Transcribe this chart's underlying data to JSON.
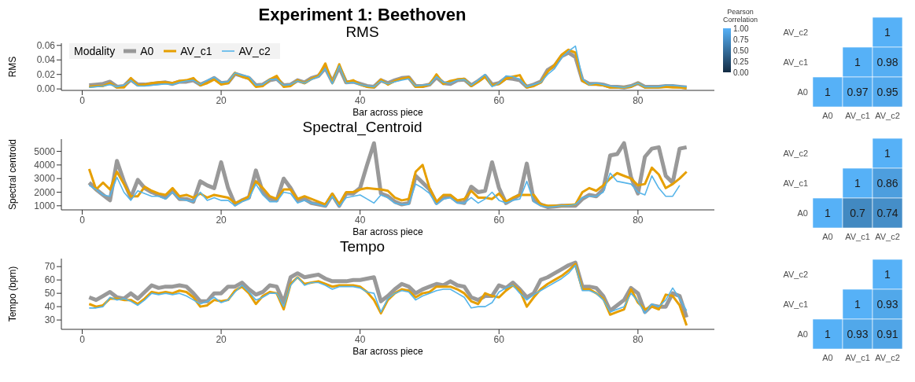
{
  "chart_data": [
    {
      "type": "line",
      "title": "Experiment 1: Beethoven",
      "subtitle": "RMS",
      "xlabel": "Bar across piece",
      "ylabel": "RMS",
      "legend_title": "Modality",
      "legend": "top left",
      "x": [
        1,
        2,
        3,
        4,
        5,
        6,
        7,
        8,
        9,
        10,
        11,
        12,
        13,
        14,
        15,
        16,
        17,
        18,
        19,
        20,
        21,
        22,
        23,
        24,
        25,
        26,
        27,
        28,
        29,
        30,
        31,
        32,
        33,
        34,
        35,
        36,
        37,
        38,
        39,
        40,
        41,
        42,
        43,
        44,
        45,
        46,
        47,
        48,
        49,
        50,
        51,
        52,
        53,
        54,
        55,
        56,
        57,
        58,
        59,
        60,
        61,
        62,
        63,
        64,
        65,
        66,
        67,
        68,
        69,
        70,
        71,
        72,
        73,
        74,
        75,
        76,
        77,
        78,
        79,
        80,
        81,
        82,
        83,
        84,
        85,
        86,
        87
      ],
      "xlim": [
        -3,
        91
      ],
      "xticks": [
        0,
        20,
        40,
        60,
        80
      ],
      "ylim": [
        -0.002,
        0.063
      ],
      "yticks": [
        {
          "value": 0,
          "label": "0.00"
        },
        {
          "value": 0.02,
          "label": "0.02"
        },
        {
          "value": 0.04,
          "label": "0.04"
        },
        {
          "value": 0.06,
          "label": "0.06"
        }
      ],
      "series": [
        {
          "name": "A0",
          "color": "#999999",
          "values": [
            0.005,
            0.006,
            0.007,
            0.01,
            0.003,
            0.004,
            0.013,
            0.006,
            0.006,
            0.007,
            0.008,
            0.009,
            0.007,
            0.01,
            0.01,
            0.012,
            0.006,
            0.01,
            0.015,
            0.008,
            0.009,
            0.021,
            0.018,
            0.015,
            0.005,
            0.006,
            0.012,
            0.014,
            0.005,
            0.006,
            0.012,
            0.009,
            0.015,
            0.018,
            0.029,
            0.01,
            0.03,
            0.009,
            0.01,
            0.007,
            0.004,
            0.003,
            0.012,
            0.008,
            0.012,
            0.015,
            0.016,
            0.004,
            0.004,
            0.006,
            0.016,
            0.008,
            0.007,
            0.012,
            0.013,
            0.005,
            0.011,
            0.018,
            0.006,
            0.008,
            0.015,
            0.014,
            0.012,
            0.003,
            0.006,
            0.01,
            0.026,
            0.032,
            0.045,
            0.05,
            0.044,
            0.012,
            0.007,
            0.007,
            0.006,
            0.003,
            0.003,
            0.002,
            0.004,
            0.008,
            0.003,
            0.003,
            0.003,
            0.004,
            0.004,
            0.003,
            0.002
          ]
        },
        {
          "name": "AV_c1",
          "color": "#e69f00",
          "values": [
            0.003,
            0.004,
            0.004,
            0.008,
            0.002,
            0.002,
            0.015,
            0.005,
            0.006,
            0.008,
            0.009,
            0.009,
            0.008,
            0.011,
            0.012,
            0.015,
            0.005,
            0.008,
            0.013,
            0.006,
            0.008,
            0.022,
            0.017,
            0.014,
            0.003,
            0.004,
            0.013,
            0.018,
            0.003,
            0.004,
            0.012,
            0.008,
            0.014,
            0.018,
            0.035,
            0.008,
            0.034,
            0.009,
            0.012,
            0.006,
            0.003,
            0.002,
            0.013,
            0.006,
            0.011,
            0.014,
            0.016,
            0.003,
            0.003,
            0.006,
            0.02,
            0.007,
            0.011,
            0.013,
            0.014,
            0.004,
            0.01,
            0.017,
            0.005,
            0.007,
            0.014,
            0.017,
            0.019,
            0.002,
            0.004,
            0.009,
            0.024,
            0.033,
            0.047,
            0.054,
            0.05,
            0.011,
            0.006,
            0.006,
            0.005,
            0.002,
            0.002,
            0.002,
            0.003,
            0.008,
            0.002,
            0.002,
            0.002,
            0.003,
            0.002,
            0.002,
            0.001
          ]
        },
        {
          "name": "AV_c2",
          "color": "#56b4e9",
          "values": [
            0.002,
            0.003,
            0.004,
            0.006,
            0.003,
            0.005,
            0.012,
            0.004,
            0.004,
            0.005,
            0.006,
            0.007,
            0.006,
            0.009,
            0.011,
            0.012,
            0.006,
            0.012,
            0.016,
            0.009,
            0.01,
            0.022,
            0.019,
            0.017,
            0.005,
            0.006,
            0.013,
            0.013,
            0.005,
            0.006,
            0.011,
            0.008,
            0.013,
            0.017,
            0.028,
            0.007,
            0.032,
            0.008,
            0.009,
            0.006,
            0.004,
            0.003,
            0.011,
            0.007,
            0.01,
            0.012,
            0.014,
            0.004,
            0.005,
            0.006,
            0.017,
            0.009,
            0.008,
            0.012,
            0.013,
            0.005,
            0.012,
            0.02,
            0.003,
            0.008,
            0.018,
            0.017,
            0.013,
            0.003,
            0.006,
            0.009,
            0.02,
            0.028,
            0.043,
            0.052,
            0.059,
            0.014,
            0.006,
            0.008,
            0.006,
            0.004,
            0.003,
            0.002,
            0.004,
            0.008,
            0.003,
            0.003,
            0.003,
            0.005,
            0.005,
            0.004,
            0.003
          ]
        }
      ]
    },
    {
      "type": "heatmap",
      "clabel": "Pearson Correlation",
      "categories": [
        "A0",
        "AV_c1",
        "AV_c2"
      ],
      "y_categories": [
        "AV_c2",
        "AV_c1",
        "A0"
      ],
      "cells": [
        [
          null,
          null,
          1
        ],
        [
          null,
          1,
          0.98
        ],
        [
          1,
          0.97,
          0.95
        ]
      ],
      "data_labels": true,
      "clim": [
        0,
        1
      ],
      "cticks": [
        {
          "value": 0,
          "label": "0.00"
        },
        {
          "value": 0.25,
          "label": "0.25"
        },
        {
          "value": 0.5,
          "label": "0.50"
        },
        {
          "value": 0.75,
          "label": "0.75"
        },
        {
          "value": 1,
          "label": "1.00"
        }
      ]
    },
    {
      "type": "line",
      "title": "Spectral_Centroid",
      "xlabel": "Bar across piece",
      "ylabel": "Spectral centroid",
      "x": [
        1,
        2,
        3,
        4,
        5,
        6,
        7,
        8,
        9,
        10,
        11,
        12,
        13,
        14,
        15,
        16,
        17,
        18,
        19,
        20,
        21,
        22,
        23,
        24,
        25,
        26,
        27,
        28,
        29,
        30,
        31,
        32,
        33,
        34,
        35,
        36,
        37,
        38,
        39,
        40,
        41,
        42,
        43,
        44,
        45,
        46,
        47,
        48,
        49,
        50,
        51,
        52,
        53,
        54,
        55,
        56,
        57,
        58,
        59,
        60,
        61,
        62,
        63,
        64,
        65,
        66,
        67,
        68,
        69,
        70,
        71,
        72,
        73,
        74,
        75,
        76,
        77,
        78,
        79,
        80,
        81,
        82,
        83,
        84,
        85,
        86,
        87
      ],
      "xlim": [
        -3,
        91
      ],
      "xticks": [
        0,
        20,
        40,
        60,
        80
      ],
      "ylim": [
        700,
        5900
      ],
      "yticks": [
        1000,
        2000,
        3000,
        4000,
        5000
      ],
      "series": [
        {
          "color": "#999999",
          "values": [
            2700,
            2200,
            1800,
            1400,
            4300,
            2800,
            1600,
            2900,
            2300,
            2000,
            1800,
            1600,
            2100,
            1500,
            1500,
            1300,
            2800,
            2500,
            2300,
            4200,
            2300,
            1100,
            1400,
            1600,
            3600,
            2000,
            1500,
            1400,
            3000,
            2300,
            1400,
            1500,
            1200,
            1100,
            1000,
            1800,
            1000,
            1900,
            1900,
            2300,
            4000,
            5600,
            1900,
            1700,
            1300,
            1100,
            1200,
            3200,
            2700,
            2200,
            1200,
            1600,
            1700,
            1300,
            1200,
            2400,
            2000,
            2100,
            4200,
            2300,
            1200,
            1500,
            1800,
            4100,
            1400,
            1100,
            900,
            950,
            1000,
            1000,
            1000,
            1500,
            1800,
            1700,
            2200,
            4700,
            4800,
            5600,
            3100,
            1900,
            4600,
            5200,
            5300,
            3200,
            2700,
            5200,
            5300
          ]
        },
        {
          "color": "#e69f00",
          "values": [
            3700,
            2200,
            2700,
            2200,
            3500,
            2600,
            1700,
            1700,
            2400,
            2100,
            1900,
            1800,
            2300,
            1700,
            1800,
            1600,
            1900,
            1600,
            1800,
            1700,
            1600,
            1200,
            1400,
            1700,
            2800,
            2300,
            1700,
            1500,
            2200,
            2200,
            1500,
            1700,
            1500,
            1300,
            1100,
            1900,
            1100,
            2000,
            2000,
            2200,
            2300,
            2250,
            2200,
            2100,
            1600,
            1400,
            1500,
            3500,
            4000,
            2300,
            1300,
            1800,
            1800,
            1400,
            1500,
            2100,
            1600,
            1600,
            1500,
            1900,
            1300,
            1600,
            1800,
            1800,
            1800,
            1100,
            1000,
            1000,
            1000,
            1050,
            1100,
            2000,
            2300,
            2100,
            2500,
            3000,
            3400,
            3200,
            3000,
            2500,
            2600,
            3800,
            3300,
            2300,
            2600,
            3000,
            3500
          ]
        },
        {
          "color": "#56b4e9",
          "values": [
            2500,
            2200,
            1800,
            1700,
            3100,
            2000,
            1400,
            2100,
            1900,
            1700,
            1700,
            1500,
            2000,
            1500,
            1400,
            1300,
            2000,
            1400,
            1600,
            1400,
            1400,
            1000,
            1300,
            1500,
            2600,
            1800,
            1300,
            1300,
            2000,
            1900,
            1200,
            1400,
            1200,
            1100,
            950,
            1700,
            950,
            1600,
            1700,
            1800,
            1500,
            1200,
            1800,
            1600,
            1200,
            1100,
            1100,
            2600,
            2300,
            1900,
            1100,
            1500,
            1600,
            1200,
            1200,
            1600,
            1200,
            1500,
            2000,
            1400,
            1200,
            1400,
            1500,
            2800,
            1300,
            1000,
            900,
            950,
            1000,
            1000,
            1100,
            1600,
            1700,
            1700,
            2000,
            3400,
            2800,
            2700,
            2600,
            2000,
            1800,
            3200,
            2300,
            1700,
            1700,
            2500,
            null
          ]
        }
      ]
    },
    {
      "type": "heatmap",
      "categories": [
        "A0",
        "AV_c1",
        "AV_c2"
      ],
      "y_categories": [
        "AV_c2",
        "AV_c1",
        "A0"
      ],
      "cells": [
        [
          null,
          null,
          1
        ],
        [
          null,
          1,
          0.86
        ],
        [
          1,
          0.7,
          0.74
        ]
      ],
      "data_labels": true
    },
    {
      "type": "line",
      "title": "Tempo",
      "xlabel": "Bar across piece",
      "ylabel": "Tempo (bpm)",
      "x": [
        1,
        2,
        3,
        4,
        5,
        6,
        7,
        8,
        9,
        10,
        11,
        12,
        13,
        14,
        15,
        16,
        17,
        18,
        19,
        20,
        21,
        22,
        23,
        24,
        25,
        26,
        27,
        28,
        29,
        30,
        31,
        32,
        33,
        34,
        35,
        36,
        37,
        38,
        39,
        40,
        41,
        42,
        43,
        44,
        45,
        46,
        47,
        48,
        49,
        50,
        51,
        52,
        53,
        54,
        55,
        56,
        57,
        58,
        59,
        60,
        61,
        62,
        63,
        64,
        65,
        66,
        67,
        68,
        69,
        70,
        71,
        72,
        73,
        74,
        75,
        76,
        77,
        78,
        79,
        80,
        81,
        82,
        83,
        84,
        85,
        86,
        87
      ],
      "xlim": [
        -3,
        91
      ],
      "xticks": [
        0,
        20,
        40,
        60,
        80
      ],
      "ylim": [
        23,
        76
      ],
      "yticks": [
        30,
        40,
        50,
        60,
        70
      ],
      "series": [
        {
          "color": "#999999",
          "values": [
            47,
            45,
            48,
            51,
            47,
            46,
            50,
            46,
            51,
            56,
            54,
            55,
            55,
            56,
            55,
            50,
            44,
            44,
            50,
            50,
            55,
            55,
            58,
            53,
            49,
            51,
            56,
            55,
            43,
            62,
            65,
            62,
            63,
            64,
            61,
            59,
            59,
            59,
            60,
            60,
            61,
            62,
            44,
            48,
            53,
            57,
            55,
            50,
            53,
            55,
            57,
            56,
            59,
            56,
            55,
            47,
            45,
            48,
            48,
            56,
            54,
            58,
            53,
            47,
            50,
            60,
            62,
            65,
            68,
            71,
            73,
            55,
            55,
            54,
            48,
            37,
            41,
            45,
            54,
            50,
            36,
            41,
            40,
            40,
            50,
            48,
            32
          ]
        },
        {
          "color": "#e69f00",
          "values": [
            42,
            40,
            41,
            46,
            46,
            45,
            45,
            42,
            46,
            51,
            50,
            51,
            50,
            52,
            51,
            47,
            40,
            41,
            45,
            44,
            45,
            52,
            55,
            50,
            42,
            48,
            51,
            50,
            38,
            57,
            62,
            57,
            58,
            59,
            57,
            55,
            56,
            56,
            56,
            55,
            51,
            45,
            35,
            45,
            50,
            53,
            52,
            47,
            50,
            51,
            55,
            55,
            55,
            53,
            50,
            44,
            42,
            50,
            48,
            47,
            52,
            56,
            52,
            40,
            47,
            53,
            57,
            60,
            63,
            67,
            72,
            53,
            53,
            50,
            46,
            34,
            36,
            38,
            53,
            43,
            38,
            40,
            38,
            49,
            48,
            41,
            26
          ]
        },
        {
          "color": "#56b4e9",
          "values": [
            39,
            39,
            40,
            47,
            45,
            46,
            44,
            41,
            45,
            50,
            49,
            50,
            49,
            50,
            48,
            45,
            42,
            44,
            47,
            43,
            45,
            51,
            56,
            51,
            45,
            47,
            50,
            50,
            40,
            56,
            62,
            56,
            58,
            58,
            56,
            53,
            55,
            55,
            55,
            54,
            51,
            50,
            36,
            46,
            50,
            52,
            51,
            45,
            48,
            50,
            52,
            53,
            53,
            50,
            47,
            39,
            40,
            40,
            43,
            51,
            54,
            56,
            50,
            45,
            49,
            52,
            55,
            58,
            61,
            65,
            71,
            52,
            52,
            50,
            45,
            36,
            38,
            40,
            50,
            44,
            35,
            42,
            40,
            45,
            54,
            46,
            37
          ]
        }
      ]
    },
    {
      "type": "heatmap",
      "categories": [
        "A0",
        "AV_c1",
        "AV_c2"
      ],
      "y_categories": [
        "AV_c2",
        "AV_c1",
        "A0"
      ],
      "cells": [
        [
          null,
          null,
          1
        ],
        [
          null,
          1,
          0.93
        ],
        [
          1,
          0.93,
          0.91
        ]
      ],
      "data_labels": true
    }
  ]
}
